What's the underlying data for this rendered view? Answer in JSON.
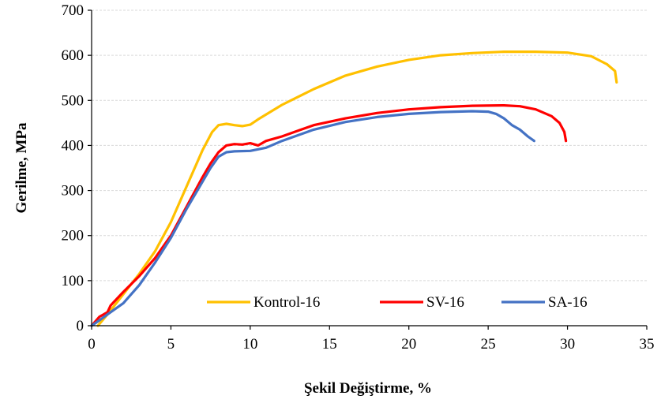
{
  "chart_data": {
    "type": "line",
    "title": "",
    "xlabel": "Şekil Değiştirme, %",
    "ylabel": "Gerilme, MPa",
    "xlim": [
      0,
      35
    ],
    "ylim": [
      0,
      700
    ],
    "xticks": [
      0,
      5,
      10,
      15,
      20,
      25,
      30,
      35
    ],
    "yticks": [
      0,
      100,
      200,
      300,
      400,
      500,
      600,
      700
    ],
    "grid": true,
    "legend_position": "bottom-right",
    "series": [
      {
        "name": "Kontrol-16",
        "color": "#FFC000",
        "points": [
          [
            0.4,
            0
          ],
          [
            1,
            25
          ],
          [
            2,
            70
          ],
          [
            3,
            115
          ],
          [
            4,
            165
          ],
          [
            5,
            230
          ],
          [
            6,
            310
          ],
          [
            7,
            390
          ],
          [
            7.6,
            430
          ],
          [
            8,
            445
          ],
          [
            8.5,
            448
          ],
          [
            9,
            445
          ],
          [
            9.5,
            443
          ],
          [
            10,
            446
          ],
          [
            10.5,
            458
          ],
          [
            12,
            490
          ],
          [
            14,
            525
          ],
          [
            16,
            555
          ],
          [
            18,
            575
          ],
          [
            20,
            590
          ],
          [
            22,
            600
          ],
          [
            24,
            605
          ],
          [
            26,
            608
          ],
          [
            28,
            608
          ],
          [
            30,
            606
          ],
          [
            31.5,
            598
          ],
          [
            32.5,
            580
          ],
          [
            33,
            565
          ],
          [
            33.1,
            540
          ]
        ]
      },
      {
        "name": "SV-16",
        "color": "#FF0000",
        "points": [
          [
            0,
            0
          ],
          [
            0.5,
            20
          ],
          [
            1,
            30
          ],
          [
            1.2,
            45
          ],
          [
            2,
            75
          ],
          [
            3,
            110
          ],
          [
            4,
            150
          ],
          [
            5,
            200
          ],
          [
            6,
            265
          ],
          [
            7,
            330
          ],
          [
            7.5,
            360
          ],
          [
            8,
            385
          ],
          [
            8.5,
            400
          ],
          [
            9,
            403
          ],
          [
            9.5,
            402
          ],
          [
            10,
            405
          ],
          [
            10.5,
            400
          ],
          [
            11,
            410
          ],
          [
            12,
            420
          ],
          [
            14,
            445
          ],
          [
            16,
            460
          ],
          [
            18,
            472
          ],
          [
            20,
            480
          ],
          [
            22,
            485
          ],
          [
            24,
            488
          ],
          [
            26,
            489
          ],
          [
            27,
            487
          ],
          [
            28,
            480
          ],
          [
            29,
            465
          ],
          [
            29.5,
            450
          ],
          [
            29.8,
            430
          ],
          [
            29.9,
            410
          ]
        ]
      },
      {
        "name": "SA-16",
        "color": "#4472C4",
        "points": [
          [
            0,
            0
          ],
          [
            0.5,
            12
          ],
          [
            1,
            25
          ],
          [
            2,
            50
          ],
          [
            3,
            90
          ],
          [
            4,
            140
          ],
          [
            5,
            195
          ],
          [
            6,
            260
          ],
          [
            7,
            320
          ],
          [
            7.5,
            350
          ],
          [
            8,
            375
          ],
          [
            8.5,
            385
          ],
          [
            9,
            387
          ],
          [
            10,
            388
          ],
          [
            11,
            395
          ],
          [
            12,
            410
          ],
          [
            14,
            435
          ],
          [
            16,
            452
          ],
          [
            18,
            463
          ],
          [
            20,
            470
          ],
          [
            22,
            474
          ],
          [
            24,
            476
          ],
          [
            25,
            475
          ],
          [
            25.5,
            470
          ],
          [
            26,
            460
          ],
          [
            26.5,
            445
          ],
          [
            27,
            435
          ],
          [
            27.5,
            420
          ],
          [
            27.9,
            410
          ]
        ]
      }
    ]
  }
}
